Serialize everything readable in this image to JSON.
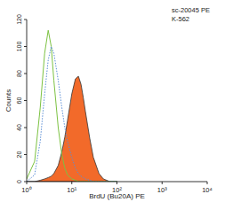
{
  "chart_data": {
    "type": "line",
    "title": "sc-20045 PE",
    "subtitle": "K-562",
    "x_label": "BrdU (Bu20A) PE",
    "y_label": "Counts",
    "log": "x",
    "xlim": [
      1,
      10000
    ],
    "xticks": [
      {
        "value": 1,
        "label": "10⁰"
      },
      {
        "value": 10,
        "label": "10¹"
      },
      {
        "value": 100,
        "label": "10²"
      },
      {
        "value": 1000,
        "label": "10³"
      },
      {
        "value": 10000,
        "label": "10⁴"
      }
    ],
    "ylim": [
      0,
      120
    ],
    "yticks": [
      0,
      20,
      40,
      60,
      80,
      100,
      120
    ],
    "x": [
      1,
      1.5,
      2,
      2.5,
      3,
      3.5,
      4,
      5,
      6,
      7,
      8,
      10,
      12,
      14,
      16,
      18,
      20,
      25,
      30,
      40,
      50,
      70,
      100
    ],
    "series": [
      {
        "type": "area",
        "color": "#f26a2a",
        "values": [
          0,
          0,
          1,
          2,
          3,
          4,
          6,
          12,
          22,
          33,
          45,
          65,
          76,
          78,
          72,
          62,
          52,
          32,
          18,
          6,
          2,
          0,
          0
        ]
      },
      {
        "type": "line",
        "color": "#7cc242",
        "line_style": "solid",
        "values": [
          2,
          15,
          55,
          95,
          112,
          100,
          75,
          40,
          20,
          10,
          5,
          2,
          1,
          0,
          0,
          0,
          0,
          0,
          0,
          0,
          0,
          0,
          0
        ]
      },
      {
        "type": "line",
        "color": "#5b8fd6",
        "line_style": "dotted",
        "values": [
          0,
          5,
          30,
          65,
          90,
          100,
          95,
          75,
          55,
          40,
          30,
          18,
          10,
          6,
          4,
          3,
          2,
          1,
          0,
          0,
          0,
          0,
          0
        ]
      }
    ]
  }
}
